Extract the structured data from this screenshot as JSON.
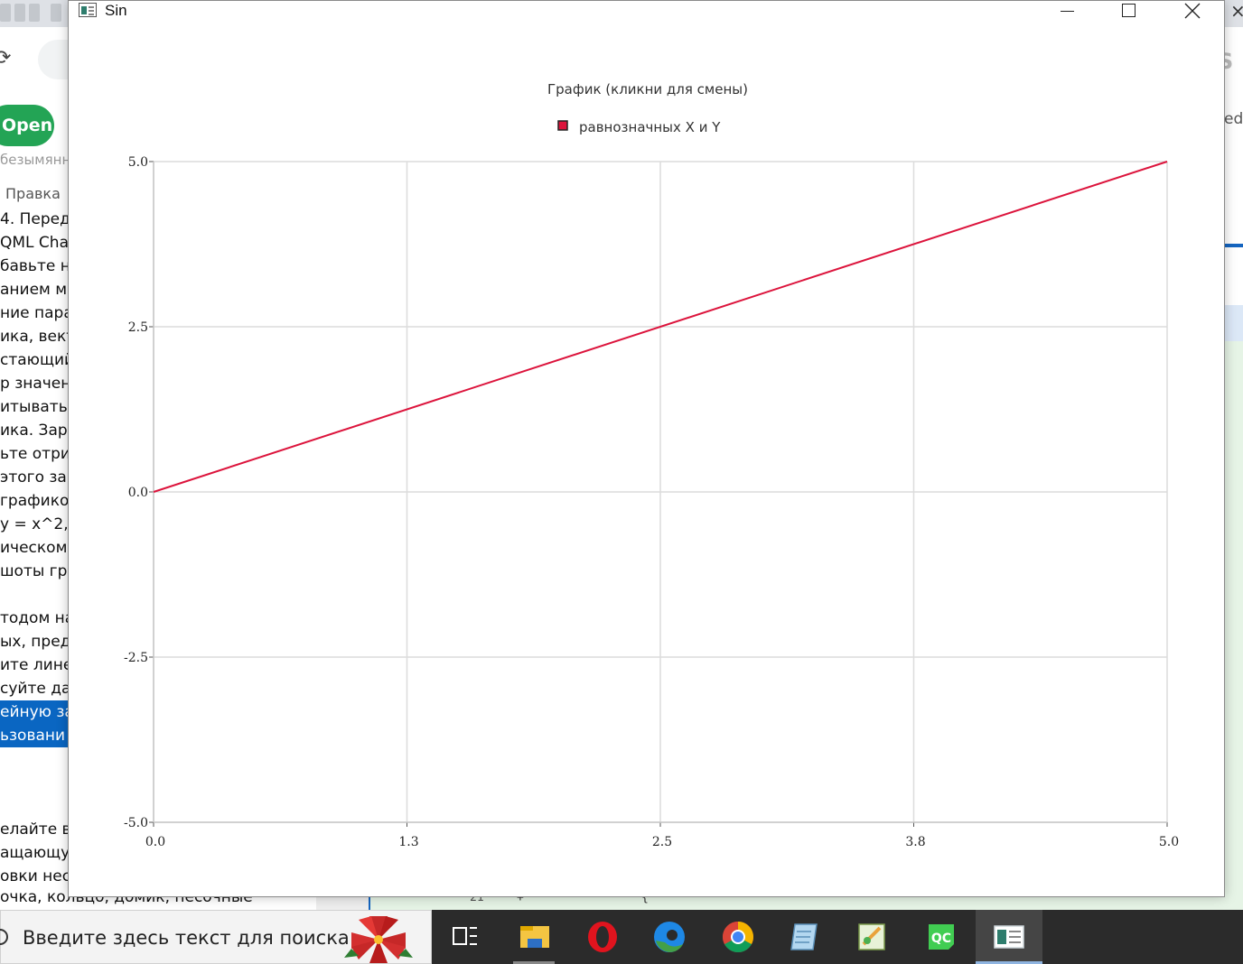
{
  "background": {
    "open_button": "Open",
    "doc_name": "безымянн",
    "menu_item": "Правка",
    "doc_lines": [
      {
        "text": "4. Перед",
        "selected": false
      },
      {
        "text": "QML Cha",
        "selected": false
      },
      {
        "text": "бавьте н",
        "selected": false
      },
      {
        "text": "анием ме",
        "selected": false
      },
      {
        "text": "ние пара",
        "selected": false
      },
      {
        "text": "ика, вект",
        "selected": false
      },
      {
        "text": "стающий",
        "selected": false
      },
      {
        "text": "р значен",
        "selected": false
      },
      {
        "text": "итывать",
        "selected": false
      },
      {
        "text": "ика. Заре",
        "selected": false
      },
      {
        "text": "ьте отри",
        "selected": false
      },
      {
        "text": "этого зар",
        "selected": false
      },
      {
        "text": " графико",
        "selected": false
      },
      {
        "text": "y = x^2,",
        "selected": false
      },
      {
        "text": "ическом",
        "selected": false
      },
      {
        "text": "шоты гр",
        "selected": false
      },
      {
        "text": "",
        "selected": false
      },
      {
        "text": "тодом на",
        "selected": false
      },
      {
        "text": "ых, пред",
        "selected": false
      },
      {
        "text": "ите лине",
        "selected": false
      },
      {
        "text": "суйте да",
        "selected": false
      },
      {
        "text": "ейную за",
        "selected": true
      },
      {
        "text": "ьзовани",
        "selected": true
      },
      {
        "text": "",
        "selected": false
      },
      {
        "text": "",
        "selected": false
      },
      {
        "text": "",
        "selected": false
      },
      {
        "text": "елайте в",
        "selected": false
      },
      {
        "text": "ащающу",
        "selected": false
      },
      {
        "text": "овки нес",
        "selected": false
      }
    ],
    "bottom_text": "очка, кольцо, домик, песочные",
    "right_text": "ed",
    "code_line_number": "21",
    "code_plus": "+",
    "code_brace": "{"
  },
  "window": {
    "title": "Sin"
  },
  "chart_data": {
    "type": "line",
    "title": "График (кликни для смены)",
    "legend_position": "top-center",
    "grid": true,
    "x": [
      0.0,
      5.0
    ],
    "series": [
      {
        "name": "равнозначных X и Y",
        "color": "#dc143c",
        "x": [
          0.0,
          5.0
        ],
        "y": [
          0.0,
          5.0
        ]
      }
    ],
    "xlim": [
      0.0,
      5.0
    ],
    "ylim": [
      -5.0,
      5.0
    ],
    "x_ticks": [
      0.0,
      1.25,
      2.5,
      3.75,
      5.0
    ],
    "x_tick_labels": [
      "0.0",
      "1.3",
      "2.5",
      "3.8",
      "5.0"
    ],
    "y_ticks": [
      5.0,
      2.5,
      0.0,
      -2.5,
      -5.0
    ],
    "y_tick_labels": [
      "5.0",
      "2.5",
      "0.0",
      "-2.5",
      "-5.0"
    ]
  },
  "taskbar": {
    "search_placeholder": "Введите здесь текст для поиска",
    "items": [
      {
        "name": "task-view-icon"
      },
      {
        "name": "file-explorer-icon"
      },
      {
        "name": "opera-icon"
      },
      {
        "name": "edge-icon"
      },
      {
        "name": "chrome-icon"
      },
      {
        "name": "notepad-icon"
      },
      {
        "name": "notepadqq-icon"
      },
      {
        "name": "qt-creator-icon",
        "label": "QC"
      },
      {
        "name": "mychart-app-icon"
      }
    ]
  }
}
